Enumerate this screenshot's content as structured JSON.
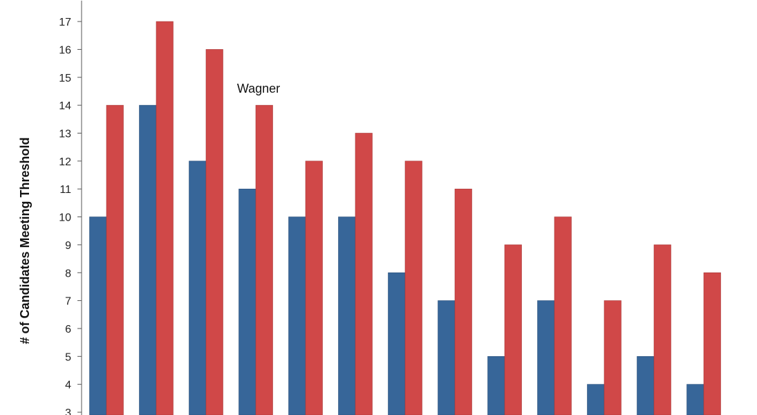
{
  "chart_data": {
    "type": "bar",
    "title": "",
    "xlabel": "",
    "ylabel": "# of Candidates Meeting Threshold",
    "ylim": [
      3,
      17.75
    ],
    "yticks": [
      3,
      4,
      5,
      6,
      7,
      8,
      9,
      10,
      11,
      12,
      13,
      14,
      15,
      16,
      17
    ],
    "grid": false,
    "categories": [
      "",
      "",
      "",
      "",
      "",
      "",
      "",
      "",
      "",
      "",
      "",
      "",
      ""
    ],
    "series": [
      {
        "name": "",
        "color": "#376699",
        "values": [
          10,
          14,
          12,
          11,
          10,
          10,
          8,
          7,
          5,
          7,
          4,
          5,
          4
        ]
      },
      {
        "name": "",
        "color": "#d04848",
        "values": [
          14,
          17,
          16,
          14,
          12,
          13,
          12,
          11,
          9,
          10,
          7,
          9,
          8
        ]
      }
    ],
    "annotations": [
      {
        "text": "Wagner",
        "category_index": 3
      }
    ]
  }
}
